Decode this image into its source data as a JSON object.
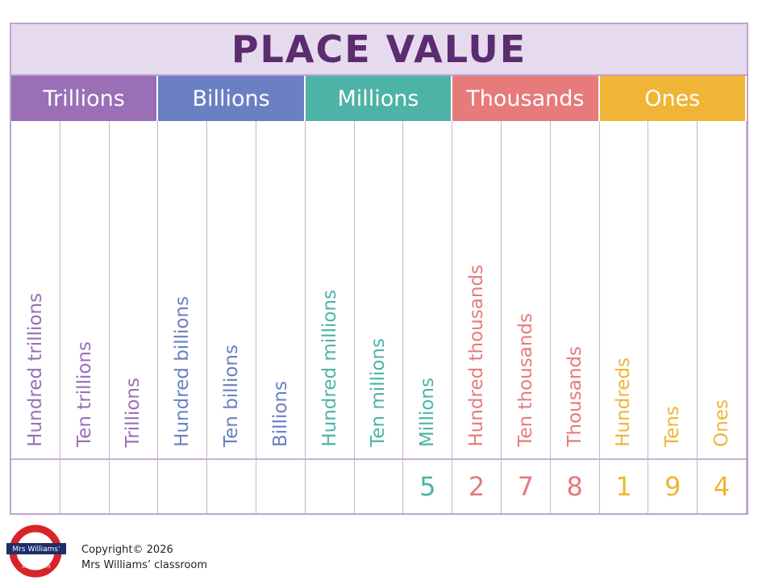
{
  "title": "PLACE VALUE",
  "groups": [
    {
      "name": "Trillions",
      "color": "#9a6fb5",
      "columns": [
        {
          "label": "Hundred trillions"
        },
        {
          "label": "Ten trillions"
        },
        {
          "label": "Trillions"
        }
      ]
    },
    {
      "name": "Billions",
      "color": "#6b80c3",
      "columns": [
        {
          "label": "Hundred billions"
        },
        {
          "label": "Ten billions"
        },
        {
          "label": "Billions"
        }
      ]
    },
    {
      "name": "Millions",
      "color": "#4db3a6",
      "columns": [
        {
          "label": "Hundred millions"
        },
        {
          "label": "Ten millions"
        },
        {
          "label": "Millions",
          "digit": 5
        }
      ]
    },
    {
      "name": "Thousands",
      "color": "#e77a7a",
      "columns": [
        {
          "label": "Hundred thousands",
          "digit": 2
        },
        {
          "label": "Ten thousands",
          "digit": 7
        },
        {
          "label": "Thousands",
          "digit": 8
        }
      ]
    },
    {
      "name": "Ones",
      "color": "#f0b437",
      "columns": [
        {
          "label": "Hundreds",
          "digit": 1
        },
        {
          "label": "Tens",
          "digit": 9
        },
        {
          "label": "Ones",
          "digit": 4
        }
      ]
    }
  ],
  "footer": {
    "logo_top": "Mrs Williams'",
    "logo_bottom": "classroom",
    "copyright": "Copyright© 2026",
    "owner": "Mrs Williams’ classroom"
  }
}
